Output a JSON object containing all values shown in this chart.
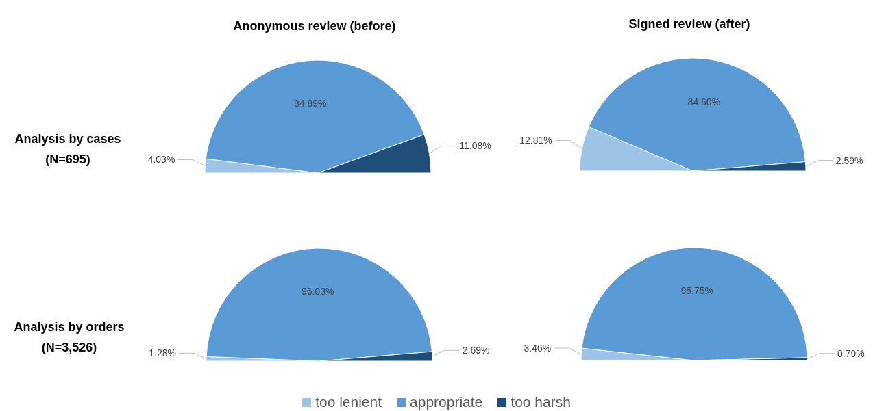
{
  "chart_data": [
    {
      "type": "pie",
      "title": "Anonymous review (before)",
      "ylabel": "Analysis by cases (N=695)",
      "categories": [
        "too lenient",
        "appropriate",
        "too harsh"
      ],
      "values": [
        4.03,
        84.89,
        11.08
      ],
      "value_labels": [
        "4.03%",
        "84.89%",
        "11.08%"
      ],
      "colors": [
        "#9dc3e6",
        "#5b9bd5",
        "#1f4e79"
      ],
      "legend": "bottom"
    },
    {
      "type": "pie",
      "title": "Signed review (after)",
      "values": [
        12.81,
        84.6,
        2.59
      ],
      "value_labels": [
        "12.81%",
        "84.60%",
        "2.59%"
      ],
      "colors": [
        "#9dc3e6",
        "#5b9bd5",
        "#1f4e79"
      ]
    },
    {
      "type": "pie",
      "ylabel": "Analysis by orders (N=3,526)",
      "values": [
        1.28,
        96.03,
        2.69
      ],
      "value_labels": [
        "1.28%",
        "96.03%",
        "2.69%"
      ],
      "colors": [
        "#9dc3e6",
        "#5b9bd5",
        "#1f4e79"
      ]
    },
    {
      "type": "pie",
      "values": [
        3.46,
        95.75,
        0.79
      ],
      "value_labels": [
        "3.46%",
        "95.75%",
        "0.79%"
      ],
      "colors": [
        "#9dc3e6",
        "#5b9bd5",
        "#1f4e79"
      ]
    }
  ]
}
